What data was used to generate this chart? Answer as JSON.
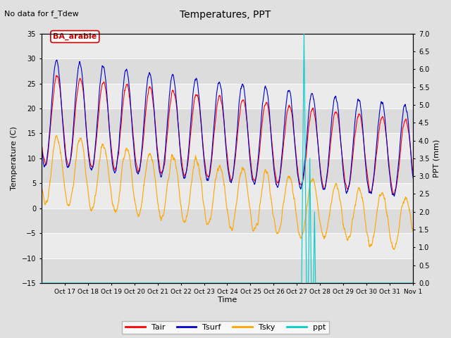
{
  "title": "Temperatures, PPT",
  "suptitle": "No data for f_Tdew",
  "annotation": "BA_arable",
  "xlabel": "Time",
  "ylabel_left": "Temperature (C)",
  "ylabel_right": "PPT (mm)",
  "ylim_left": [
    -15,
    35
  ],
  "ylim_right": [
    0.0,
    7.0
  ],
  "yticks_left": [
    -15,
    -10,
    -5,
    0,
    5,
    10,
    15,
    20,
    25,
    30,
    35
  ],
  "yticks_right": [
    0.0,
    0.5,
    1.0,
    1.5,
    2.0,
    2.5,
    3.0,
    3.5,
    4.0,
    4.5,
    5.0,
    5.5,
    6.0,
    6.5,
    7.0
  ],
  "colors": {
    "Tair": "#ff0000",
    "Tsurf": "#0000cc",
    "Tsky": "#ffa500",
    "ppt": "#00cccc"
  },
  "linewidth": 0.8,
  "xtick_labels": [
    "Oct 17",
    "Oct 18",
    "Oct 19",
    "Oct 20",
    "Oct 21",
    "Oct 22",
    "Oct 23",
    "Oct 24",
    "Oct 25",
    "Oct 26",
    "Oct 27",
    "Oct 28",
    "Oct 29",
    "Oct 30",
    "Oct 31",
    "Nov 1"
  ],
  "band_colors": [
    "#dcdcdc",
    "#ebebeb"
  ]
}
